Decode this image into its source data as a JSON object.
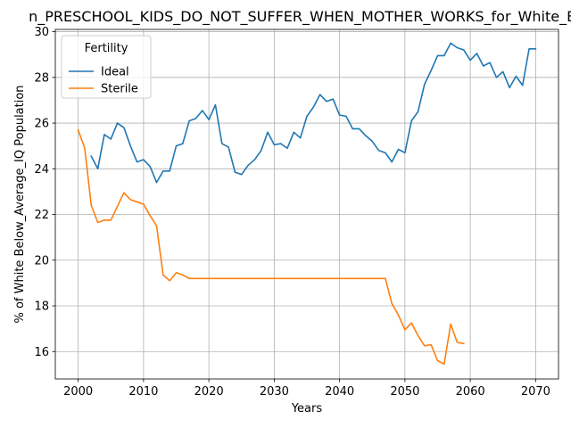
{
  "chart_data": {
    "type": "line",
    "title": "n_PRESCHOOL_KIDS_DO_NOT_SUFFER_WHEN_MOTHER_WORKS_for_White_Be",
    "xlabel": "Years",
    "ylabel": "% of White Below_Average_IQ Population",
    "xlim": [
      1996.5,
      2073.5
    ],
    "ylim": [
      14.8,
      30.1
    ],
    "xticks": [
      2000,
      2010,
      2020,
      2030,
      2040,
      2050,
      2060,
      2070
    ],
    "yticks": [
      16,
      18,
      20,
      22,
      24,
      26,
      28,
      30
    ],
    "grid": true,
    "legend": {
      "title": "Fertility",
      "placement": "top-left"
    },
    "series": [
      {
        "name": "Ideal",
        "color": "#1f77b4",
        "x": [
          2002,
          2003,
          2004,
          2005,
          2006,
          2007,
          2008,
          2009,
          2010,
          2011,
          2012,
          2013,
          2014,
          2015,
          2016,
          2017,
          2018,
          2019,
          2020,
          2021,
          2022,
          2023,
          2024,
          2025,
          2026,
          2027,
          2028,
          2029,
          2030,
          2031,
          2032,
          2033,
          2034,
          2035,
          2036,
          2037,
          2038,
          2039,
          2040,
          2041,
          2042,
          2043,
          2044,
          2045,
          2046,
          2047,
          2048,
          2049,
          2050,
          2051,
          2052,
          2053,
          2054,
          2055,
          2056,
          2057,
          2058,
          2059,
          2060,
          2061,
          2062,
          2063,
          2064,
          2065,
          2066,
          2067,
          2068,
          2069,
          2070
        ],
        "y": [
          24.55,
          24.0,
          25.5,
          25.3,
          26.0,
          25.8,
          25.0,
          24.3,
          24.4,
          24.1,
          23.4,
          23.9,
          23.9,
          25.0,
          25.1,
          26.1,
          26.2,
          26.55,
          26.15,
          26.8,
          25.1,
          24.95,
          23.85,
          23.75,
          24.15,
          24.4,
          24.8,
          25.6,
          25.05,
          25.1,
          24.9,
          25.6,
          25.35,
          26.3,
          26.7,
          27.25,
          26.95,
          27.05,
          26.35,
          26.3,
          25.75,
          25.75,
          25.45,
          25.2,
          24.8,
          24.7,
          24.3,
          24.85,
          24.7,
          26.1,
          26.5,
          27.7,
          28.3,
          28.95,
          28.95,
          29.5,
          29.3,
          29.2,
          28.75,
          29.05,
          28.5,
          28.65,
          28.0,
          28.25,
          27.55,
          28.05,
          27.65,
          29.25,
          29.25
        ]
      },
      {
        "name": "Sterile",
        "color": "#ff7f0e",
        "x": [
          2000,
          2001,
          2002,
          2003,
          2004,
          2005,
          2006,
          2007,
          2008,
          2009,
          2010,
          2011,
          2012,
          2013,
          2014,
          2015,
          2016,
          2017,
          2018,
          2019,
          2020,
          2021,
          2022,
          2023,
          2024,
          2025,
          2026,
          2027,
          2028,
          2029,
          2030,
          2031,
          2032,
          2033,
          2034,
          2035,
          2036,
          2037,
          2038,
          2039,
          2040,
          2041,
          2042,
          2043,
          2044,
          2045,
          2046,
          2047,
          2048,
          2049,
          2050,
          2051,
          2052,
          2053,
          2054,
          2055,
          2056,
          2057,
          2058,
          2059
        ],
        "y": [
          25.7,
          24.9,
          22.4,
          21.65,
          21.75,
          21.75,
          22.35,
          22.95,
          22.65,
          22.55,
          22.45,
          21.95,
          21.5,
          19.35,
          19.1,
          19.45,
          19.35,
          19.2,
          19.2,
          19.2,
          19.2,
          19.2,
          19.2,
          19.2,
          19.2,
          19.2,
          19.2,
          19.2,
          19.2,
          19.2,
          19.2,
          19.2,
          19.2,
          19.2,
          19.2,
          19.2,
          19.2,
          19.2,
          19.2,
          19.2,
          19.2,
          19.2,
          19.2,
          19.2,
          19.2,
          19.2,
          19.2,
          19.2,
          18.1,
          17.6,
          16.95,
          17.25,
          16.7,
          16.25,
          16.3,
          15.6,
          15.45,
          17.2,
          16.4,
          16.35
        ]
      }
    ]
  }
}
